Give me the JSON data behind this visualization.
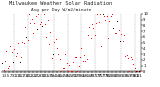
{
  "title": "Milwaukee Weather Solar Radiation",
  "subtitle": "Avg per Day W/m2/minute",
  "ylim": [
    0,
    10
  ],
  "xlim": [
    0,
    104
  ],
  "background_color": "#ffffff",
  "dot_color_main": "#ff0000",
  "dot_color_secondary": "#000000",
  "grid_color": "#999999",
  "title_fontsize": 3.8,
  "subtitle_fontsize": 3.2,
  "tick_fontsize": 2.8,
  "ytick_labels": [
    "0",
    "1",
    "2",
    "3",
    "4",
    "5",
    "6",
    "7",
    "8",
    "9",
    "10"
  ],
  "num_points": 104,
  "seed": 42,
  "grid_interval": 10
}
